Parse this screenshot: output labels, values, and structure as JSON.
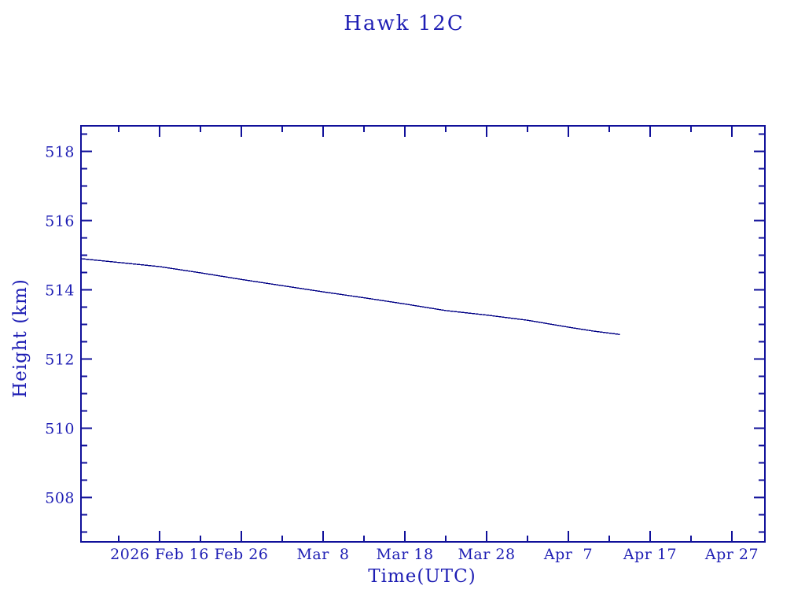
{
  "page": {
    "background": "#ffffff"
  },
  "chart_data": {
    "type": "line",
    "title": "Hawk 12C",
    "xlabel": "Time(UTC)",
    "ylabel": "Height (km)",
    "grid": false,
    "legend": "none",
    "x_axis": {
      "tick_labels": [
        "2026 Feb 16",
        "Feb 26",
        "Mar  8",
        "Mar 18",
        "Mar 28",
        "Apr  7",
        "Apr 17",
        "Apr 27"
      ],
      "tick_days_since_feb16": [
        0,
        10,
        20,
        30,
        40,
        50,
        60,
        70
      ],
      "minor_tick_days": [
        -5,
        5,
        15,
        25,
        35,
        45,
        55,
        65
      ],
      "minor_interval_days": 5,
      "domain_days": [
        -9.615,
        74.04
      ]
    },
    "y_axis": {
      "major_tick_labels": [
        "508",
        "510",
        "512",
        "514",
        "516",
        "518"
      ],
      "major_ticks": [
        508,
        510,
        512,
        514,
        516,
        518
      ],
      "minor_interval_km": 0.5,
      "minor_range": [
        507,
        518.5
      ],
      "domain": [
        506.72,
        518.74
      ]
    },
    "series": [
      {
        "name": "Hawk 12C height",
        "points": [
          {
            "date": "2026 Feb 6",
            "day": -9.615,
            "height_km": 514.9
          },
          {
            "date": "2026 Feb 11",
            "day": -5,
            "height_km": 514.79
          },
          {
            "date": "2026 Feb 16",
            "day": 0,
            "height_km": 514.67
          },
          {
            "date": "2026 Feb 21",
            "day": 5,
            "height_km": 514.49
          },
          {
            "date": "2026 Feb 26",
            "day": 10,
            "height_km": 514.3
          },
          {
            "date": "2026 Mar 3",
            "day": 15,
            "height_km": 514.12
          },
          {
            "date": "2026 Mar 8",
            "day": 20,
            "height_km": 513.94
          },
          {
            "date": "2026 Mar 13",
            "day": 25,
            "height_km": 513.77
          },
          {
            "date": "2026 Mar 18",
            "day": 30,
            "height_km": 513.59
          },
          {
            "date": "2026 Mar 23",
            "day": 35,
            "height_km": 513.4
          },
          {
            "date": "2026 Mar 28",
            "day": 40,
            "height_km": 513.27
          },
          {
            "date": "2026 Apr 2",
            "day": 45,
            "height_km": 513.12
          },
          {
            "date": "2026 Apr 7",
            "day": 50,
            "height_km": 512.92
          },
          {
            "date": "2026 Apr 10",
            "day": 53,
            "height_km": 512.81
          },
          {
            "date": "2026 Apr 13",
            "day": 56.3,
            "height_km": 512.71
          }
        ]
      }
    ],
    "colors": {
      "axis": "#10109a",
      "text": "#1e1eb4",
      "line": "#000085",
      "background": "#ffffff"
    }
  }
}
